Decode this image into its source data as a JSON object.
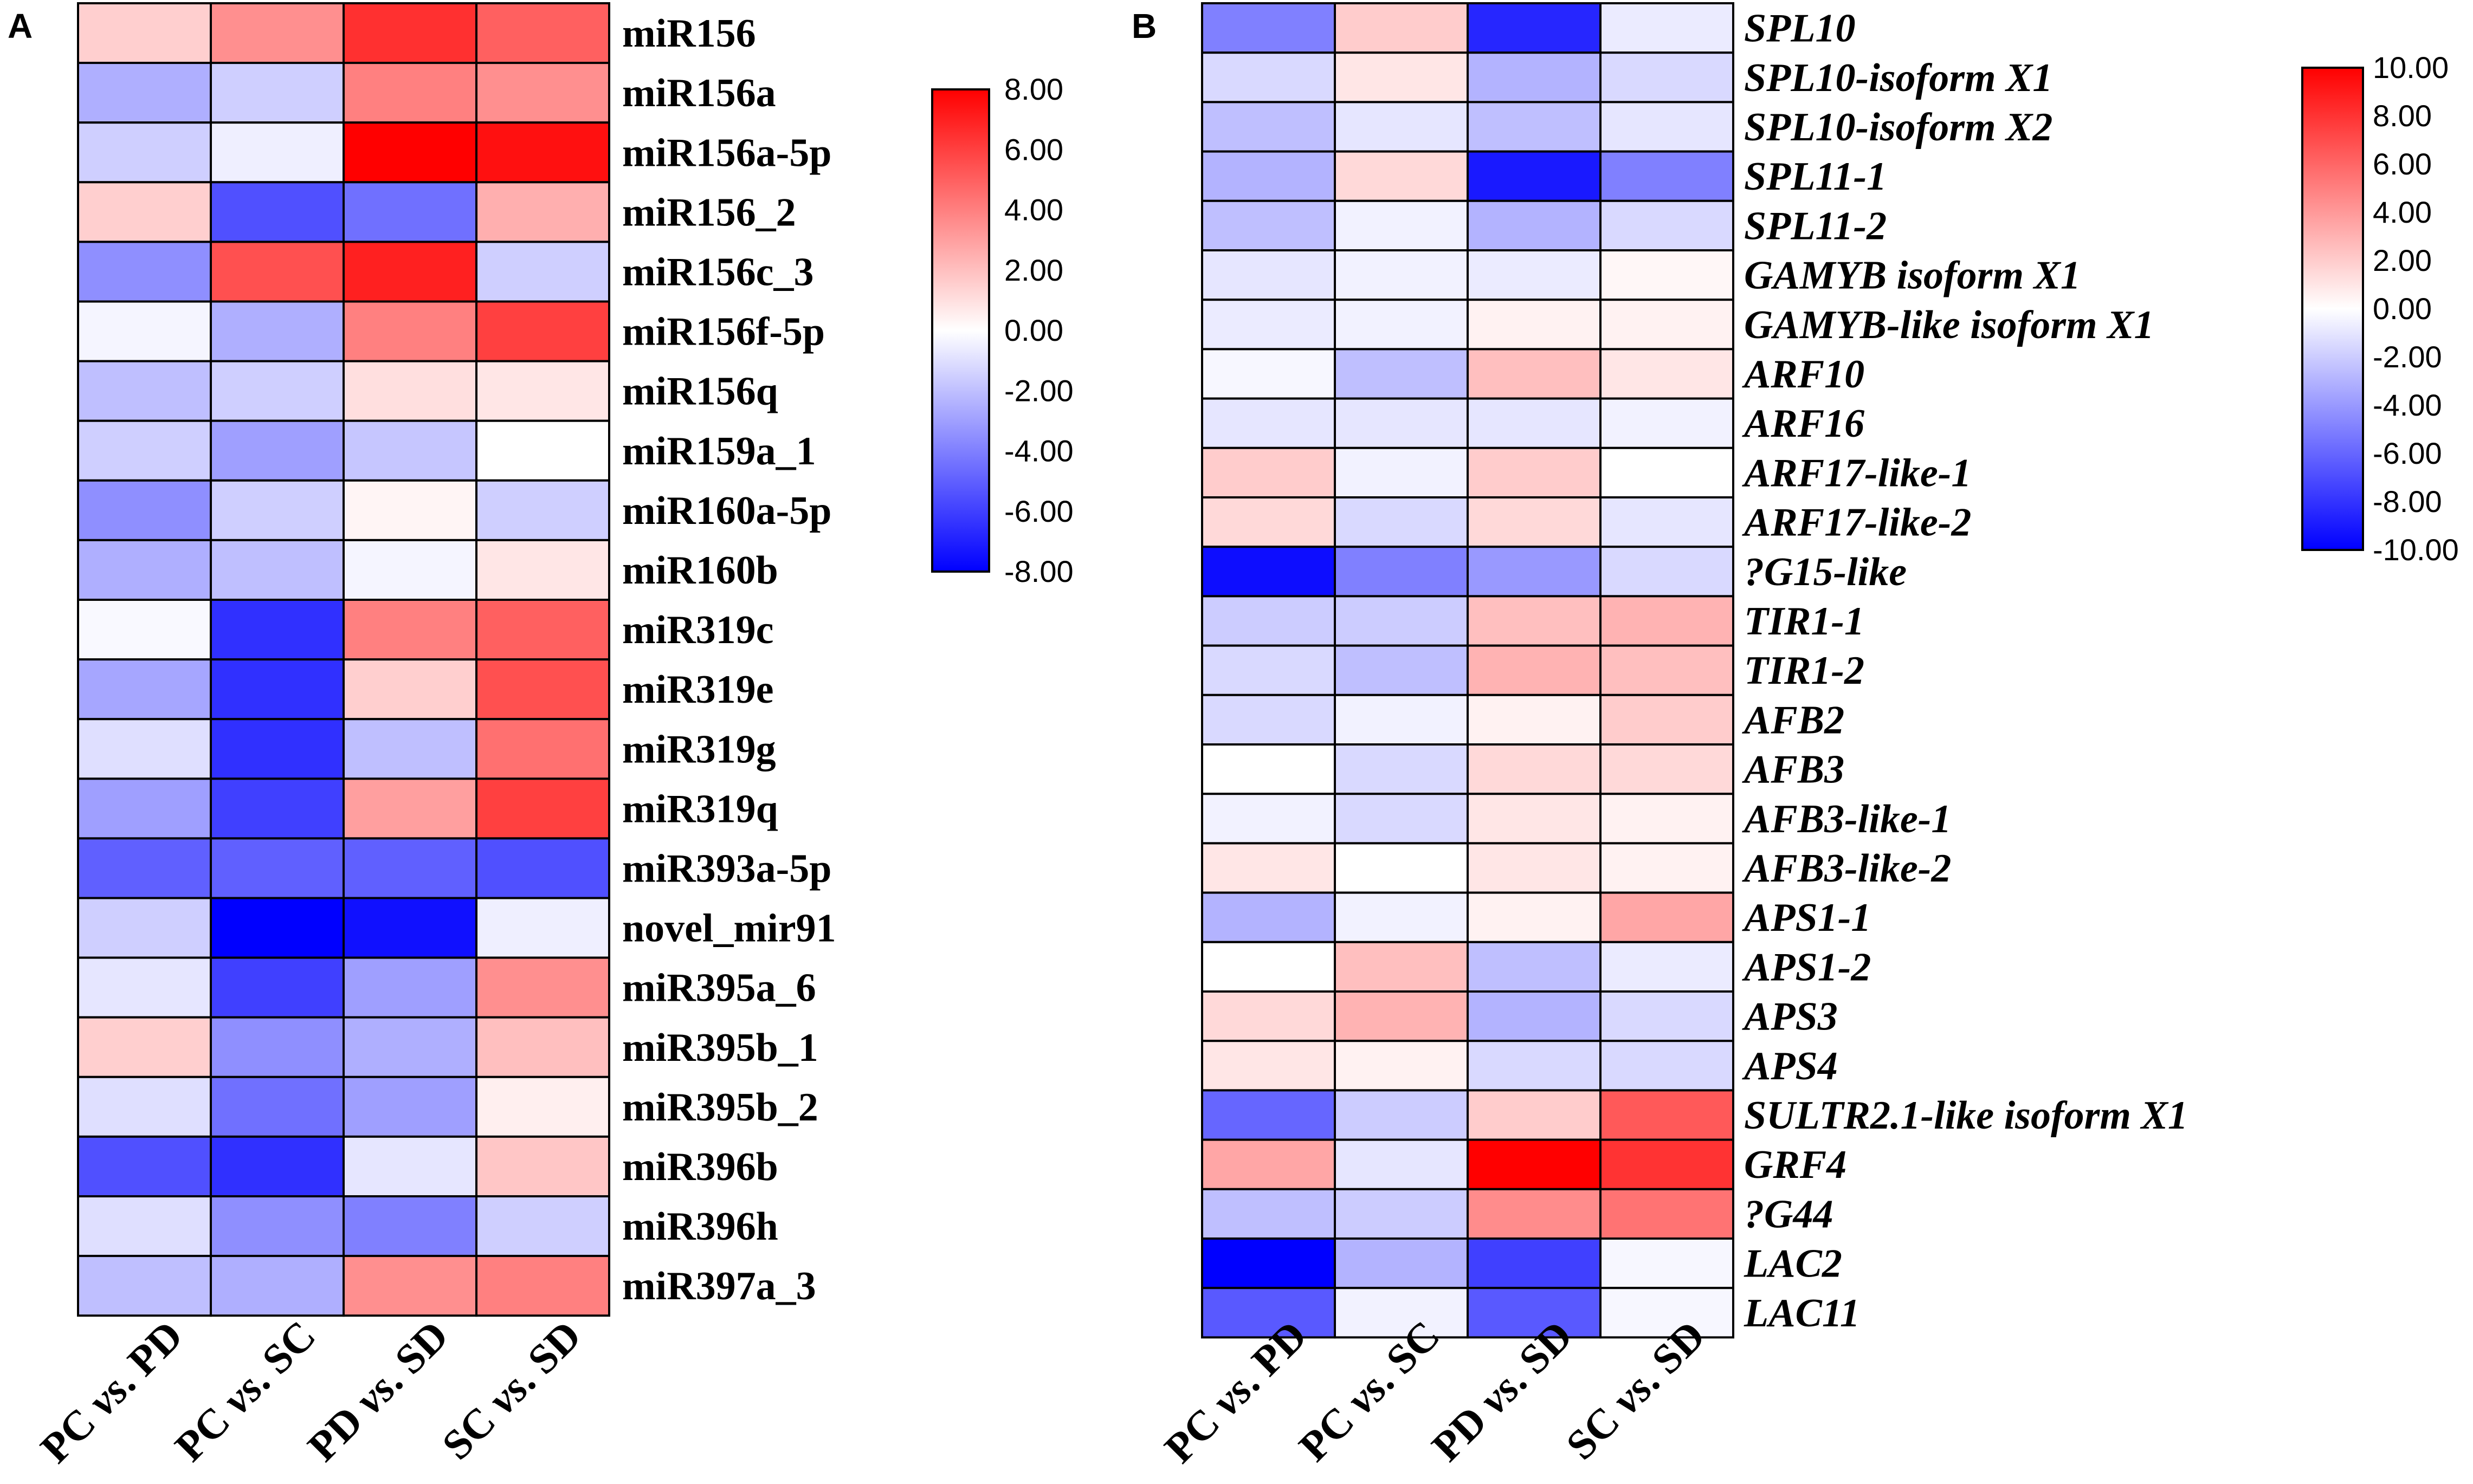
{
  "chart_data": [
    {
      "panel": "A",
      "type": "heatmap",
      "columns": [
        {
          "pre": "PC ",
          "vs": "vs",
          "post": ". PD"
        },
        {
          "pre": "PC ",
          "vs": "vs",
          "post": ". SC"
        },
        {
          "pre": "PD ",
          "vs": "vs",
          "post": ". SD"
        },
        {
          "pre": "SC ",
          "vs": "vs",
          "post": ". SD"
        }
      ],
      "rows": [
        "miR156",
        "miR156a",
        "miR156a-5p",
        "miR156_2",
        "miR156c_3",
        "miR156f-5p",
        "miR156q",
        "miR159a_1",
        "miR160a-5p",
        "miR160b",
        "miR319c",
        "miR319e",
        "miR319g",
        "miR319q",
        "miR393a-5p",
        "novel_mir91",
        "miR395a_6",
        "miR395b_1",
        "miR395b_2",
        "miR396b",
        "miR396h",
        "miR397a_3"
      ],
      "values": [
        [
          1.5,
          3.5,
          6.5,
          5.0
        ],
        [
          -2.5,
          -1.5,
          4.0,
          3.5
        ],
        [
          -1.5,
          -0.5,
          8.0,
          7.5
        ],
        [
          1.5,
          -5.5,
          -4.5,
          2.5
        ],
        [
          -3.5,
          5.5,
          7.0,
          -1.5
        ],
        [
          -0.3,
          -2.5,
          4.0,
          6.0
        ],
        [
          -2.0,
          -1.5,
          1.0,
          0.8
        ],
        [
          -1.5,
          -3.0,
          -1.8,
          0.0
        ],
        [
          -3.5,
          -1.5,
          0.3,
          -1.5
        ],
        [
          -2.5,
          -2.0,
          -0.3,
          0.8
        ],
        [
          -0.2,
          -6.5,
          4.0,
          5.0
        ],
        [
          -2.8,
          -6.5,
          1.5,
          5.5
        ],
        [
          -1.0,
          -6.5,
          -2.0,
          4.5
        ],
        [
          -3.0,
          -6.0,
          3.0,
          6.0
        ],
        [
          -5.0,
          -5.0,
          -5.0,
          -5.5
        ],
        [
          -1.5,
          -8.0,
          -7.5,
          -0.5
        ],
        [
          -0.8,
          -6.0,
          -3.0,
          3.5
        ],
        [
          1.5,
          -3.5,
          -2.5,
          2.0
        ],
        [
          -1.0,
          -4.5,
          -3.0,
          0.5
        ],
        [
          -5.5,
          -6.5,
          -0.8,
          1.8
        ],
        [
          -1.0,
          -3.5,
          -4.0,
          -1.5
        ],
        [
          -2.0,
          -2.5,
          3.5,
          4.0
        ]
      ],
      "colorbar": {
        "min": -8,
        "max": 8,
        "ticks": [
          "8.00",
          "6.00",
          "4.00",
          "2.00",
          "0.00",
          "-2.00",
          "-4.00",
          "-6.00",
          "-8.00"
        ]
      }
    },
    {
      "panel": "B",
      "type": "heatmap",
      "columns": [
        {
          "pre": "PC ",
          "vs": "vs",
          "post": ". PD"
        },
        {
          "pre": "PC ",
          "vs": "vs",
          "post": ". SC"
        },
        {
          "pre": "PD ",
          "vs": "vs",
          "post": ". SD"
        },
        {
          "pre": "SC ",
          "vs": "vs",
          "post": ". SD"
        }
      ],
      "rows": [
        "SPL10",
        "SPL10-isoform X1",
        "SPL10-isoform X2",
        "SPL11-1",
        "SPL11-2",
        "GAMYB isoform X1",
        "GAMYB-like isoform X1",
        "ARF10",
        "ARF16",
        "ARF17-like-1",
        "ARF17-like-2",
        "?G15-like",
        "TIR1-1",
        "TIR1-2",
        "AFB2",
        "AFB3",
        "AFB3-like-1",
        "AFB3-like-2",
        "APS1-1",
        "APS1-2",
        "APS3",
        "APS4",
        "SULTR2.1-like isoform X1",
        "GRF4",
        "?G44",
        "LAC2",
        "LAC11"
      ],
      "values": [
        [
          -5.0,
          2.0,
          -8.5,
          -0.8
        ],
        [
          -1.5,
          1.0,
          -3.0,
          -1.5
        ],
        [
          -2.5,
          -1.0,
          -2.5,
          -1.0
        ],
        [
          -3.0,
          1.5,
          -9.0,
          -5.0
        ],
        [
          -2.5,
          -0.5,
          -3.0,
          -1.5
        ],
        [
          -1.0,
          -0.5,
          -0.8,
          0.3
        ],
        [
          -0.8,
          -0.5,
          0.5,
          0.5
        ],
        [
          -0.3,
          -2.5,
          2.5,
          1.0
        ],
        [
          -1.0,
          -1.0,
          -1.0,
          -0.5
        ],
        [
          2.0,
          -0.5,
          2.0,
          0.0
        ],
        [
          1.5,
          -1.5,
          1.5,
          -1.0
        ],
        [
          -9.5,
          -5.0,
          -4.0,
          -1.5
        ],
        [
          -2.0,
          -2.0,
          2.5,
          3.0
        ],
        [
          -1.5,
          -2.5,
          3.0,
          2.5
        ],
        [
          -1.5,
          -0.5,
          0.5,
          2.0
        ],
        [
          0.0,
          -1.5,
          1.5,
          1.5
        ],
        [
          -0.5,
          -1.5,
          1.0,
          0.5
        ],
        [
          1.0,
          0.0,
          1.0,
          0.5
        ],
        [
          -3.0,
          -0.5,
          0.5,
          3.5
        ],
        [
          0.0,
          2.5,
          -2.5,
          -0.8
        ],
        [
          1.5,
          3.0,
          -3.0,
          -1.5
        ],
        [
          1.0,
          0.5,
          -1.5,
          -1.5
        ],
        [
          -6.0,
          -2.0,
          2.0,
          6.5
        ],
        [
          3.5,
          -1.0,
          10.0,
          8.0
        ],
        [
          -2.5,
          -2.0,
          4.5,
          5.5
        ],
        [
          -10.0,
          -3.0,
          -7.5,
          -0.3
        ],
        [
          -6.5,
          -0.5,
          -6.5,
          -0.3
        ]
      ],
      "colorbar": {
        "min": -10,
        "max": 10,
        "ticks": [
          "10.00",
          "8.00",
          "6.00",
          "4.00",
          "2.00",
          "0.00",
          "-2.00",
          "-4.00",
          "-6.00",
          "-8.00",
          "-10.00"
        ]
      }
    }
  ]
}
